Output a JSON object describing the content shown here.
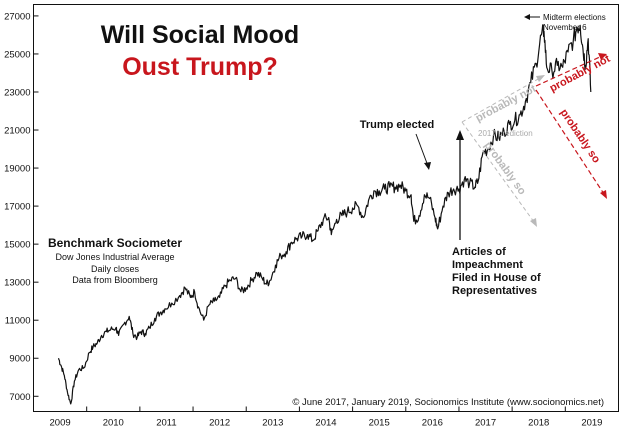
{
  "chart_data": {
    "type": "line",
    "title": "Will Social Mood",
    "subtitle": "Oust Trump?",
    "xlabel": "",
    "ylabel": "",
    "ylim": [
      6200,
      27600
    ],
    "xlim": [
      2008.5,
      2019.5
    ],
    "grid": false,
    "y_ticks": [
      7000,
      9000,
      11000,
      13000,
      15000,
      17000,
      19000,
      21000,
      23000,
      25000,
      27000
    ],
    "y_tick_labels": [
      "7000",
      "9000",
      "11000",
      "13000",
      "15000",
      "17000",
      "19000",
      "21000",
      "23000",
      "25000",
      "27000"
    ],
    "x_tick_labels": [
      "2009",
      "2010",
      "2011",
      "2012",
      "2013",
      "2014",
      "2015",
      "2016",
      "2017",
      "2018",
      "2019"
    ],
    "legend_box": {
      "title": "Benchmark Sociometer",
      "lines": [
        "Dow Jones Industrial Average",
        "Daily closes",
        "Data from Bloomberg"
      ]
    },
    "series": [
      {
        "x": [
          2008.97,
          2009.02,
          2009.08,
          2009.14,
          2009.2,
          2009.27,
          2009.35,
          2009.45,
          2009.55,
          2009.62,
          2009.7,
          2009.78,
          2009.87,
          2009.95,
          2010.05,
          2010.1,
          2010.2,
          2010.3,
          2010.37,
          2010.45,
          2010.52,
          2010.6,
          2010.68,
          2010.78,
          2010.88,
          2010.97,
          2011.1,
          2011.25,
          2011.35,
          2011.45,
          2011.53,
          2011.6,
          2011.7,
          2011.8,
          2011.9,
          2012.0,
          2012.1,
          2012.2,
          2012.3,
          2012.4,
          2012.5,
          2012.6,
          2012.7,
          2012.8,
          2012.88,
          2012.95,
          2013.05,
          2013.15,
          2013.25,
          2013.35,
          2013.45,
          2013.55,
          2013.65,
          2013.75,
          2013.85,
          2013.95,
          2014.05,
          2014.1,
          2014.2,
          2014.3,
          2014.4,
          2014.5,
          2014.6,
          2014.7,
          2014.8,
          2014.9,
          2015.0,
          2015.1,
          2015.2,
          2015.3,
          2015.4,
          2015.5,
          2015.6,
          2015.65,
          2015.75,
          2015.85,
          2015.95,
          2016.05,
          2016.1,
          2016.2,
          2016.3,
          2016.4,
          2016.5,
          2016.6,
          2016.7,
          2016.8,
          2016.86,
          2016.95,
          2017.05,
          2017.15,
          2017.25,
          2017.35,
          2017.45,
          2017.55,
          2017.65,
          2017.75,
          2017.85,
          2017.95,
          2018.05,
          2018.1,
          2018.15,
          2018.25,
          2018.35,
          2018.45,
          2018.55,
          2018.65,
          2018.72,
          2018.78,
          2018.83,
          2018.88,
          2018.93,
          2018.98
        ],
        "values": [
          9000,
          8600,
          8100,
          7200,
          6600,
          7800,
          8400,
          8500,
          9300,
          9600,
          9800,
          10200,
          10400,
          10500,
          10600,
          10200,
          10800,
          11200,
          10300,
          10100,
          10400,
          10300,
          10600,
          11100,
          11400,
          11600,
          11900,
          12300,
          12700,
          12200,
          12500,
          11700,
          11000,
          11800,
          12000,
          12200,
          12800,
          13100,
          13200,
          12500,
          12700,
          13100,
          13500,
          13200,
          12900,
          13100,
          13900,
          14400,
          14600,
          15100,
          15300,
          15400,
          15500,
          15200,
          15700,
          16300,
          16400,
          15500,
          16300,
          16500,
          16700,
          16900,
          17000,
          16400,
          17300,
          17800,
          17800,
          17900,
          18000,
          18000,
          18100,
          17800,
          17600,
          16200,
          16500,
          17600,
          17400,
          16400,
          15800,
          17000,
          17700,
          17900,
          17900,
          18400,
          18200,
          18000,
          18300,
          19800,
          20000,
          20700,
          20600,
          20900,
          21300,
          21500,
          21800,
          22500,
          23500,
          24500,
          26000,
          26200,
          24300,
          24100,
          24400,
          24300,
          25100,
          25700,
          26400,
          26500,
          25300,
          24400,
          25800,
          23000
        ]
      }
    ],
    "annotations": {
      "trump_elected": "Trump elected",
      "impeachment_line1": "Articles of",
      "impeachment_line2": "Impeachment",
      "impeachment_line3": "Filed in House of",
      "impeachment_line4": "Representatives",
      "midterm_line1": "Midterm elections",
      "midterm_line2": "November 6",
      "prediction_label": "2017 prediction",
      "gray_up": "probably not",
      "gray_down": "probably so",
      "red_up": "probably not",
      "red_down": "probably so",
      "copyright": "© June 2017, January 2019, Socionomics Institute (www.socionomics.net)"
    },
    "colors": {
      "line": "#111111",
      "accent_red": "#c8161d",
      "gray_prediction": "#b9b9b9"
    }
  }
}
